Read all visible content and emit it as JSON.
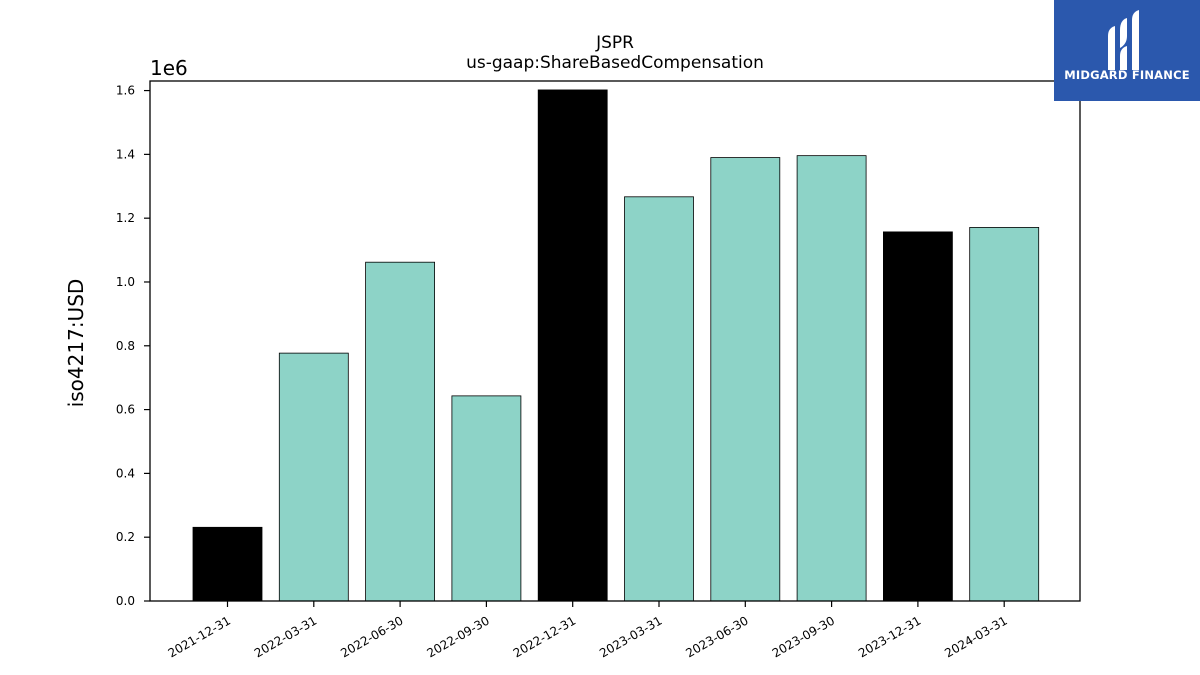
{
  "chart_data": {
    "type": "bar",
    "title": "JSPR",
    "subtitle": "us-gaap:ShareBasedCompensation",
    "ylabel": "iso4217:USD",
    "xlabel": "",
    "scale_label": "1e6",
    "categories": [
      "2021-12-31",
      "2022-03-31",
      "2022-06-30",
      "2022-09-30",
      "2022-12-31",
      "2023-03-31",
      "2023-06-30",
      "2023-09-30",
      "2023-12-31",
      "2024-03-31"
    ],
    "values": [
      231000,
      777000,
      1062000,
      643000,
      1602000,
      1267000,
      1390000,
      1396000,
      1157000,
      1171000
    ],
    "bar_colors": [
      "#000000",
      "#8dd3c7",
      "#8dd3c7",
      "#8dd3c7",
      "#000000",
      "#8dd3c7",
      "#8dd3c7",
      "#8dd3c7",
      "#000000",
      "#8dd3c7"
    ],
    "ylim": [
      0,
      1630000
    ],
    "yticks": [
      0,
      200000,
      400000,
      600000,
      800000,
      1000000,
      1200000,
      1400000,
      1600000
    ],
    "ytick_labels": [
      "0.0",
      "0.2",
      "0.4",
      "0.6",
      "0.8",
      "1.0",
      "1.2",
      "1.4",
      "1.6"
    ],
    "grid": false,
    "legend": "none"
  },
  "watermark": {
    "text": "MIDGARD FINANCE",
    "background": "#2b58ad"
  }
}
